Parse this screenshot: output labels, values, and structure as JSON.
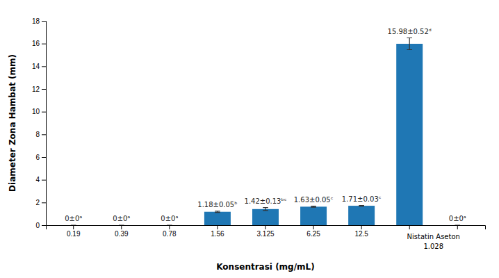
{
  "chart_data": {
    "type": "bar",
    "xlabel": "Konsentrasi (mg/mL)",
    "ylabel": "Diameter Zona Hambat (mm)",
    "categories": [
      "0.19",
      "0.39",
      "0.78",
      "1.56",
      "3.125",
      "6.25",
      "12.5",
      null,
      null
    ],
    "values": [
      0,
      0,
      0,
      1.18,
      1.42,
      1.63,
      1.71,
      15.98,
      0
    ],
    "errors": [
      0,
      0,
      0,
      0.05,
      0.13,
      0.05,
      0.03,
      0.52,
      0
    ],
    "data_labels": true,
    "value_labels": [
      "0±0ᵃ",
      "0±0ᵃ",
      "0±0ᵃ",
      "1.18±0.05ᵇ",
      "1.42±0.13ᵇᶜ",
      "1.63±0.05ᶜ",
      "1.71±0.03ᶜ",
      "15.98±0.52ᵈ",
      "0±0ᵃ"
    ],
    "annotations": [
      "Nistatin Aseton",
      "1.028"
    ],
    "ylim": [
      0,
      18
    ],
    "yticks": [
      0,
      2,
      4,
      6,
      8,
      10,
      12,
      14,
      16,
      18
    ]
  }
}
